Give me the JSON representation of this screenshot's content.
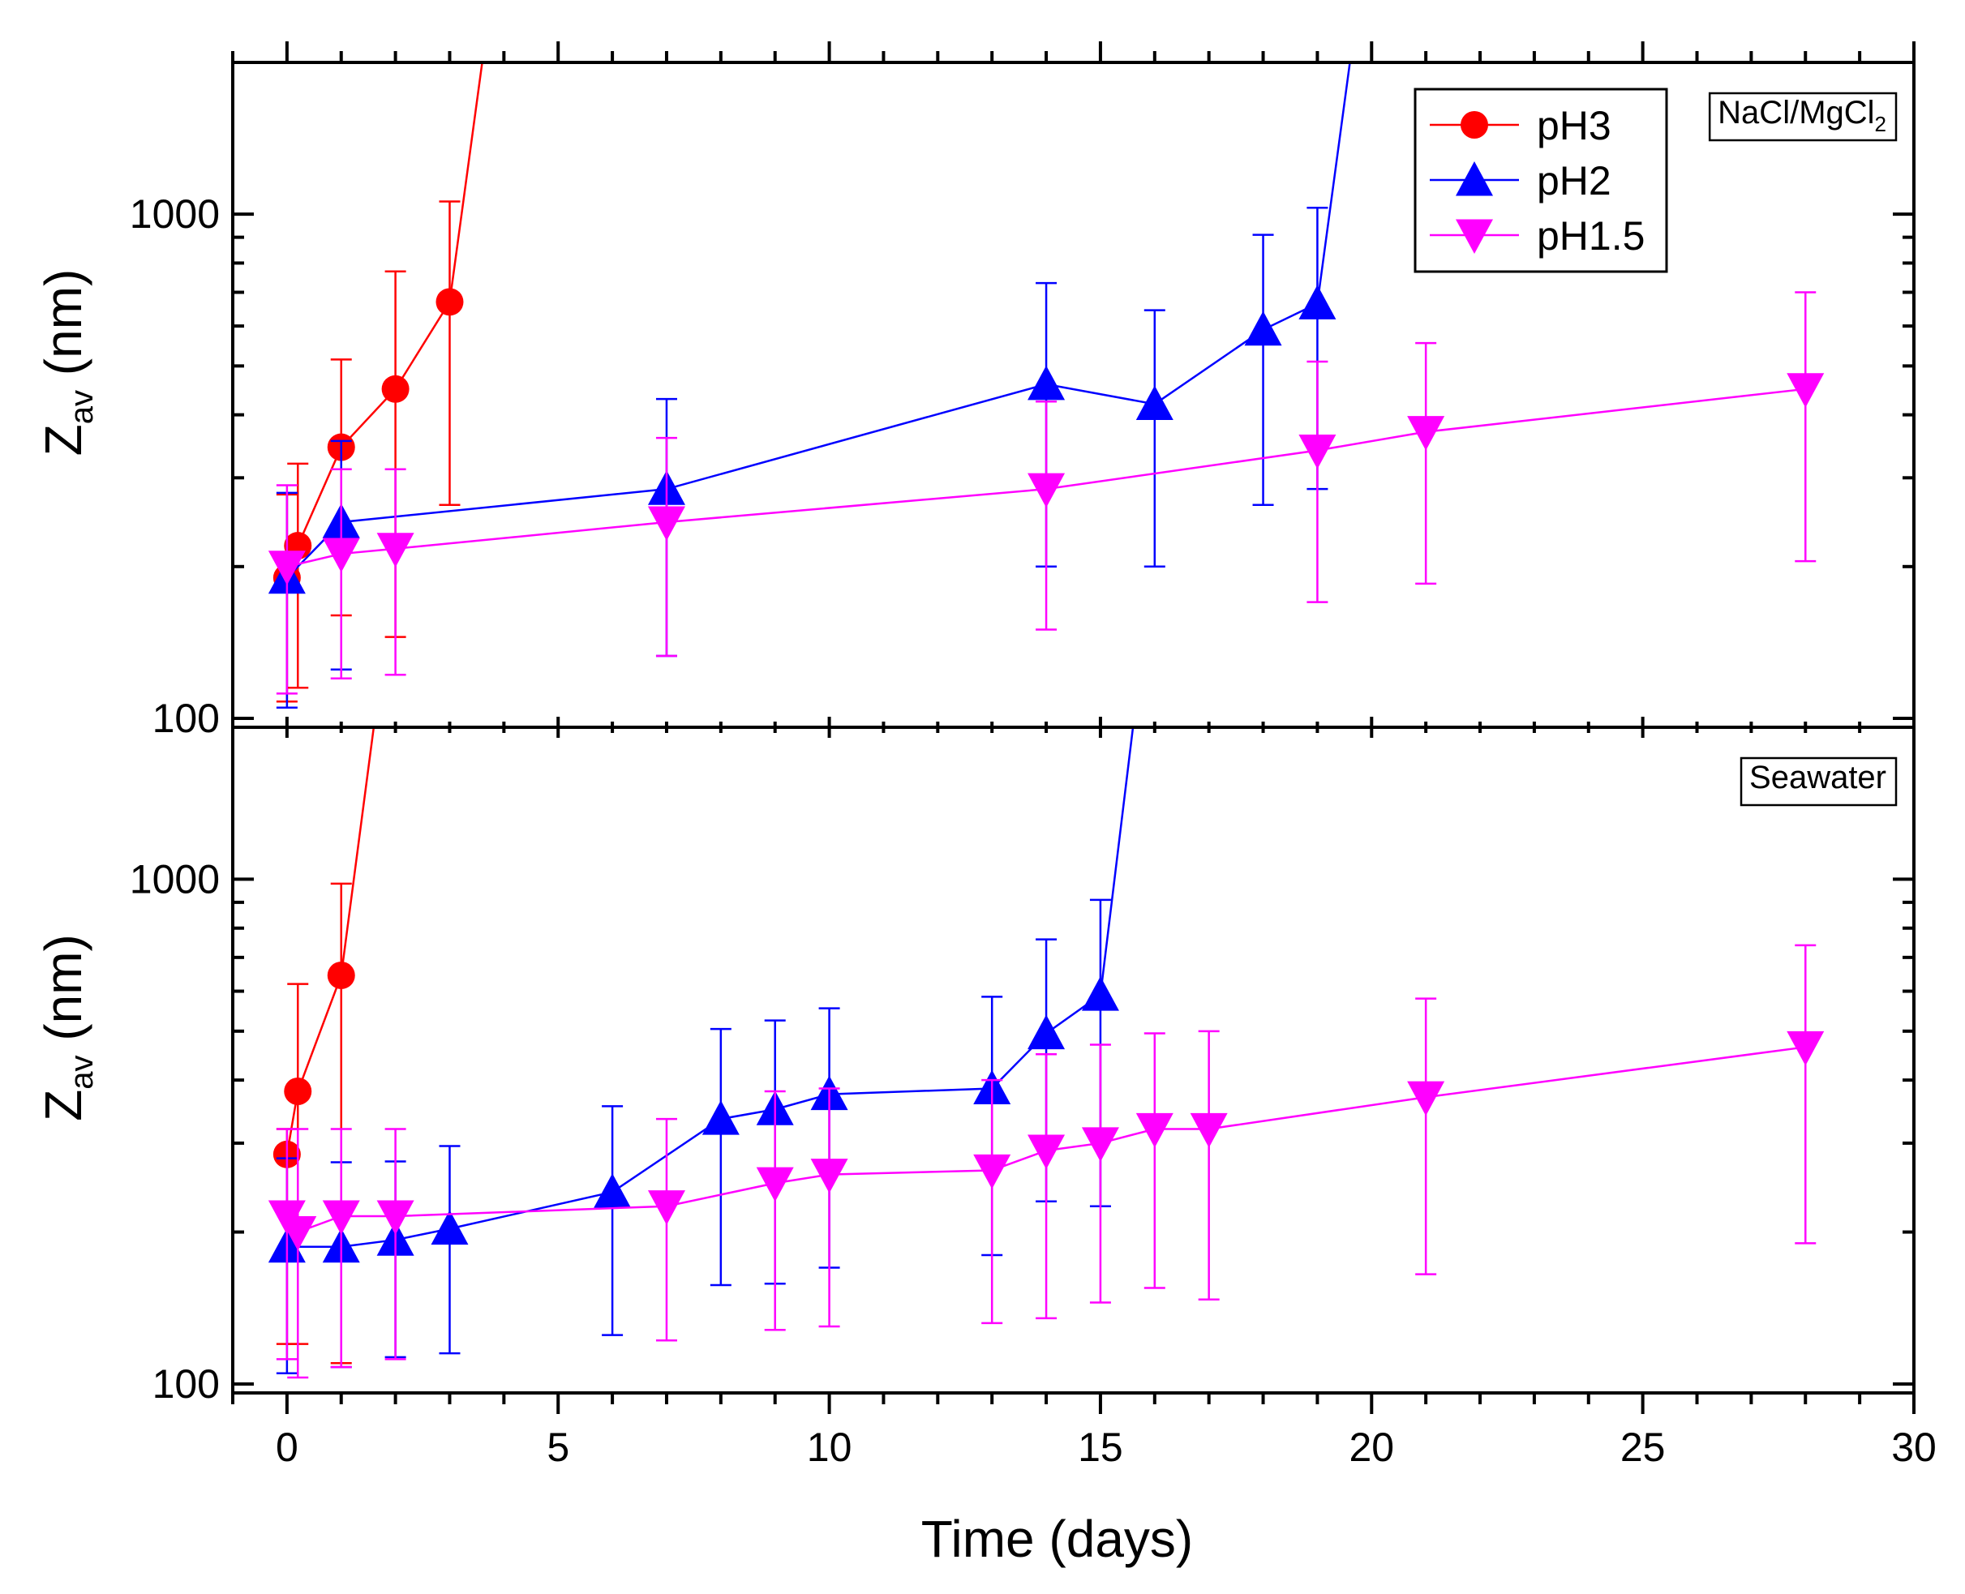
{
  "chart_data": {
    "type": "line",
    "shared_x": {
      "label": "Time (days)",
      "range": [
        -1,
        30
      ],
      "major_ticks": [
        0,
        5,
        10,
        15,
        20,
        25,
        30
      ],
      "tick_labels": [
        "0",
        "5",
        "10",
        "15",
        "20",
        "25",
        "30"
      ]
    },
    "legend": {
      "location": "top-right",
      "entries": [
        {
          "name": "pH3",
          "color": "#ff0000",
          "marker": "circle"
        },
        {
          "name": "pH2",
          "color": "#0000ff",
          "marker": "triangle-up"
        },
        {
          "name": "pH1.5",
          "color": "#ff00ff",
          "marker": "triangle-down"
        }
      ]
    },
    "panels": [
      {
        "label": "NaCl/MgCl",
        "label_sub": "2",
        "ylabel": "Z",
        "ylabel_sub": "av",
        "ylabel_unit": " (nm)",
        "yscale": "log",
        "ylim": [
          96,
          2000
        ],
        "y_tick_labels": [
          "100",
          "1000"
        ],
        "series": [
          {
            "name": "pH3",
            "color": "#ff0000",
            "marker": "circle",
            "x": [
              0,
              0.2,
              1,
              2,
              3
            ],
            "y": [
              190,
              220,
              345,
              450,
              670
            ],
            "err_low": [
              82,
              105,
              185,
              305,
              405
            ],
            "err_high": [
              88,
              100,
              170,
              320,
              390
            ],
            "runaway": [
              3.6,
              2000
            ]
          },
          {
            "name": "pH2",
            "color": "#0000ff",
            "marker": "triangle-up",
            "x": [
              0,
              1,
              7,
              14,
              16,
              18,
              19
            ],
            "y": [
              190,
              245,
              285,
              460,
              420,
              590,
              665
            ],
            "err_low": [
              85,
              120,
              152,
              260,
              220,
              325,
              380
            ],
            "err_high": [
              90,
              110,
              145,
              270,
              225,
              320,
              365
            ],
            "runaway": [
              19.6,
              2000
            ]
          },
          {
            "name": "pH1.5",
            "color": "#ff00ff",
            "marker": "triangle-down",
            "x": [
              0,
              1,
              2,
              7,
              14,
              19,
              21,
              28
            ],
            "y": [
              200,
              212,
              217,
              245,
              285,
              340,
              370,
              450
            ],
            "err_low": [
              88,
              92,
              95,
              112,
              135,
              170,
              185,
              245
            ],
            "err_high": [
              90,
              100,
              95,
              115,
              140,
              170,
              185,
              250
            ]
          }
        ]
      },
      {
        "label": "Seawater",
        "ylabel": "Z",
        "ylabel_sub": "av",
        "ylabel_unit": " (nm)",
        "yscale": "log",
        "ylim": [
          96,
          2000
        ],
        "y_tick_labels": [
          "100",
          "1000"
        ],
        "series": [
          {
            "name": "pH3",
            "color": "#ff0000",
            "marker": "circle",
            "x": [
              0,
              0.2,
              1
            ],
            "y": [
              285,
              380,
              645
            ],
            "err_low": [
              165,
              260,
              535
            ],
            "err_high": [
              35,
              240,
              335
            ],
            "runaway": [
              1.6,
              2000
            ]
          },
          {
            "name": "pH2",
            "color": "#0000ff",
            "marker": "triangle-up",
            "x": [
              0,
              1,
              2,
              3,
              6,
              8,
              9,
              10,
              13,
              14,
              15
            ],
            "y": [
              187,
              187,
              193,
              203,
              240,
              335,
              350,
              375,
              385,
              495,
              590
            ],
            "err_low": [
              82,
              79,
              80,
              88,
              115,
              178,
              192,
              205,
              205,
              265,
              365
            ],
            "err_high": [
              93,
              88,
              83,
              93,
              115,
              170,
              175,
              180,
              200,
              265,
              320
            ],
            "runaway": [
              15.6,
              2000
            ]
          },
          {
            "name": "pH1.5",
            "color": "#ff00ff",
            "marker": "triangle-down",
            "x": [
              0,
              0.2,
              1,
              2,
              7,
              9,
              10,
              13,
              14,
              15,
              16,
              17,
              21,
              28
            ],
            "y": [
              215,
              200,
              215,
              215,
              225,
              250,
              260,
              265,
              290,
              300,
              320,
              320,
              370,
              465
            ],
            "err_low": [
              103,
              97,
              107,
              103,
              103,
              122,
              130,
              133,
              155,
              155,
              165,
              173,
              205,
              275
            ],
            "err_high": [
              105,
              120,
              105,
              105,
              110,
              130,
              125,
              135,
              160,
              170,
              175,
              180,
              210,
              275
            ]
          }
        ]
      }
    ]
  }
}
